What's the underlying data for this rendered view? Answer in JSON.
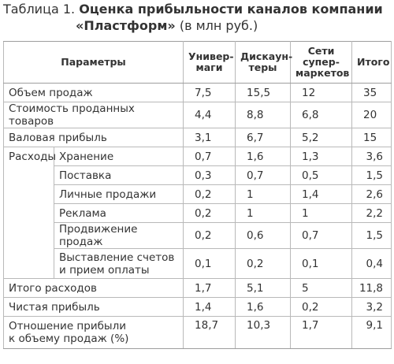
{
  "caption": {
    "label": "Таблица 1.",
    "title_line1": "Оценка прибыльности каналов компании",
    "title_line2": "«Пластформ»",
    "unit": "(в млн руб.)"
  },
  "headers": {
    "params": "Параметры",
    "col1_a": "Универ-",
    "col1_b": "маги",
    "col2_a": "Дискаун-",
    "col2_b": "теры",
    "col3_a": "Сети",
    "col3_b": "супер-",
    "col3_c": "маркетов",
    "col4": "Итого"
  },
  "rows": {
    "sales": {
      "label": "Объем продаж",
      "v1": "7,5",
      "v2": "15,5",
      "v3": "12",
      "v4": "35"
    },
    "cogs": {
      "label": "Стоимость проданных товаров",
      "v1": "4,4",
      "v2": "8,8",
      "v3": "6,8",
      "v4": "20"
    },
    "gross": {
      "label": "Валовая прибыль",
      "v1": "3,1",
      "v2": "6,7",
      "v3": "5,2",
      "v4": "15"
    },
    "expenses_group": "Расходы",
    "storage": {
      "label": "Хранение",
      "v1": "0,7",
      "v2": "1,6",
      "v3": "1,3",
      "v4": "3,6"
    },
    "delivery": {
      "label": "Поставка",
      "v1": "0,3",
      "v2": "0,7",
      "v3": "0,5",
      "v4": "1,5"
    },
    "personal": {
      "label": "Личные продажи",
      "v1": "0,2",
      "v2": "1",
      "v3": "1,4",
      "v4": "2,6"
    },
    "ads": {
      "label": "Реклама",
      "v1": "0,2",
      "v2": "1",
      "v3": "1",
      "v4": "2,2"
    },
    "promo": {
      "label": "Продвижение продаж",
      "v1": "0,2",
      "v2": "0,6",
      "v3": "0,7",
      "v4": "1,5"
    },
    "billing": {
      "label_a": "Выставление счетов",
      "label_b": "и прием оплаты",
      "v1": "0,1",
      "v2": "0,2",
      "v3": "0,1",
      "v4": "0,4"
    },
    "total_exp": {
      "label": "Итого расходов",
      "v1": "1,7",
      "v2": "5,1",
      "v3": "5",
      "v4": "11,8"
    },
    "net": {
      "label": "Чистая прибыль",
      "v1": "1,4",
      "v2": "1,6",
      "v3": "0,2",
      "v4": "3,2"
    },
    "ratio": {
      "label_a": "Отношение прибыли",
      "label_b": "к объему продаж (%)",
      "v1": "18,7",
      "v2": "10,3",
      "v3": "1,7",
      "v4": "9,1"
    }
  }
}
